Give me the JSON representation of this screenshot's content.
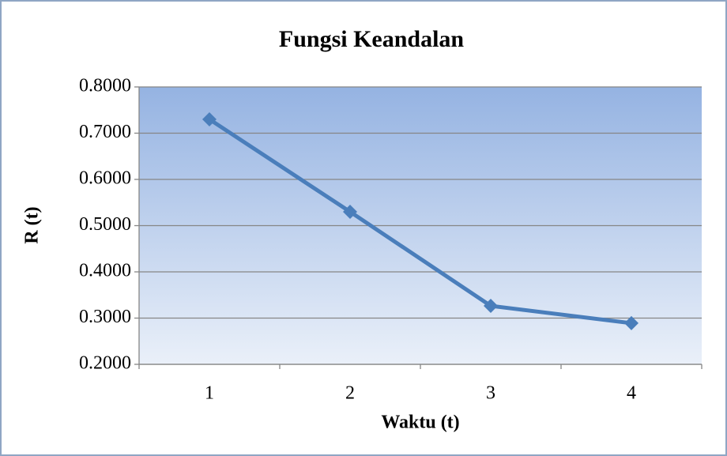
{
  "chart_data": {
    "type": "line",
    "title": "Fungsi Keandalan",
    "x_label": "Waktu (t)",
    "y_label": "R (t)",
    "categories": [
      "1",
      "2",
      "3",
      "4"
    ],
    "series": [
      {
        "name": "R (t)",
        "color": "#4a7ebb",
        "values": [
          0.73,
          0.53,
          0.3265,
          0.289
        ]
      }
    ],
    "ylim": [
      0.2,
      0.8
    ],
    "yticks": [
      {
        "value": 0.2,
        "label": "0.2000"
      },
      {
        "value": 0.3,
        "label": "0.3000"
      },
      {
        "value": 0.4,
        "label": "0.4000"
      },
      {
        "value": 0.5,
        "label": "0.5000"
      },
      {
        "value": 0.6,
        "label": "0.6000"
      },
      {
        "value": 0.7,
        "label": "0.7000"
      },
      {
        "value": 0.8,
        "label": "0.8000"
      }
    ],
    "grid": true
  }
}
